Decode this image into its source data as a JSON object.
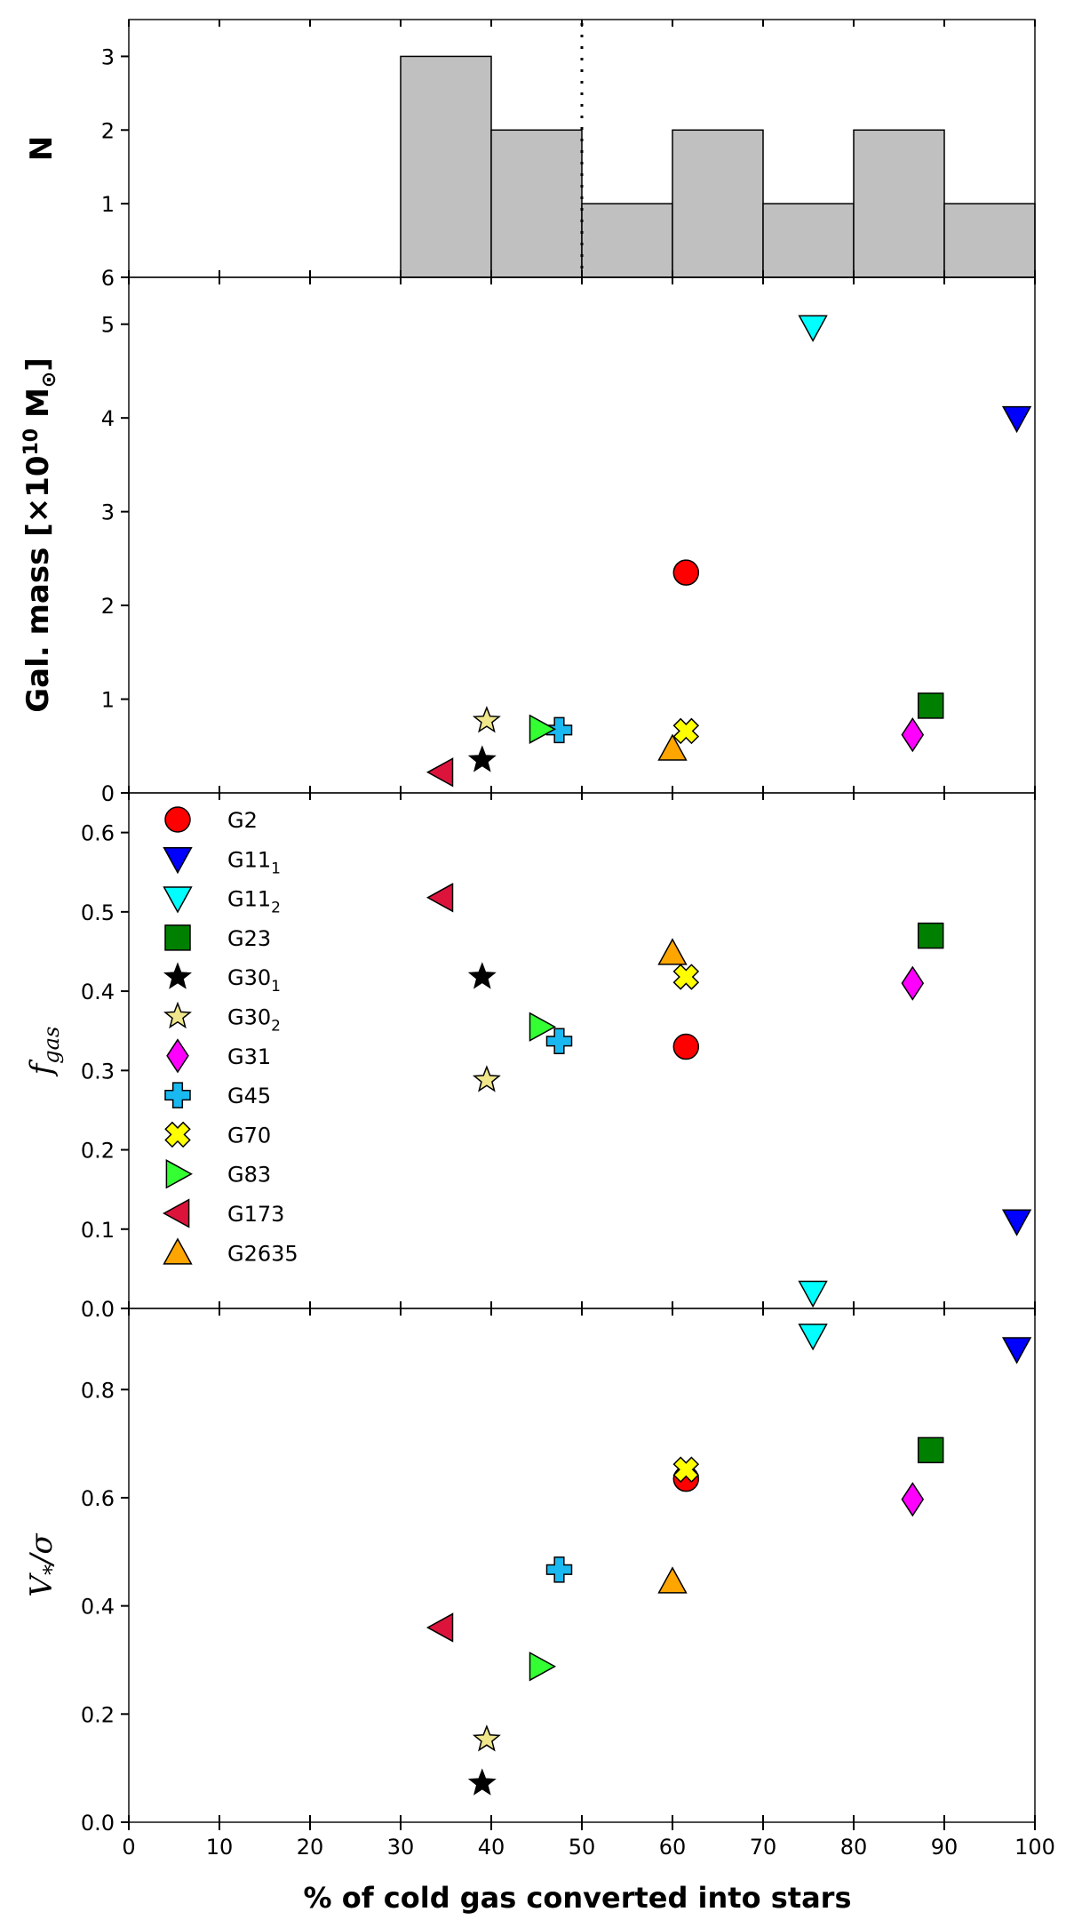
{
  "chart_data": {
    "type": "scatter",
    "xlabel": "% of cold gas converted into stars",
    "xlim": [
      0,
      100
    ],
    "xticks": [
      0,
      10,
      20,
      30,
      40,
      50,
      60,
      70,
      80,
      90,
      100
    ],
    "panels": [
      {
        "id": "histogram",
        "type": "bar",
        "ylabel": "N",
        "ylim": [
          0,
          3.5
        ],
        "yticks": [
          1,
          2,
          3
        ],
        "bottom_tick_label": "6",
        "bins": [
          30,
          40,
          50,
          60,
          70,
          80,
          90,
          100
        ],
        "counts": [
          3,
          2,
          1,
          2,
          1,
          2,
          1
        ],
        "vertical_line_x": 50
      },
      {
        "id": "mass",
        "ylabel_main": "Gal. mass [×10",
        "ylabel_sup": "10",
        "ylabel_end": " M",
        "ylabel_sub": "⊙",
        "ylabel_close": "]",
        "ylim": [
          0,
          5.5
        ],
        "yticks": [
          0,
          1,
          2,
          3,
          4,
          5
        ],
        "points": {
          "G2": [
            61.5,
            2.35
          ],
          "G11_1": [
            98,
            4.0
          ],
          "G11_2": [
            75.5,
            4.97
          ],
          "G23": [
            88.5,
            0.93
          ],
          "G30_1": [
            39,
            0.35
          ],
          "G30_2": [
            39.5,
            0.77
          ],
          "G31": [
            86.5,
            0.62
          ],
          "G45": [
            47.5,
            0.67
          ],
          "G70": [
            61.5,
            0.66
          ],
          "G83": [
            45.5,
            0.68
          ],
          "G173": [
            34.5,
            0.22
          ],
          "G2635": [
            60,
            0.47
          ]
        }
      },
      {
        "id": "fgas",
        "ylabel_base": "f",
        "ylabel_sub": "gas",
        "ylim": [
          0,
          0.65
        ],
        "yticks": [
          0.0,
          0.1,
          0.2,
          0.3,
          0.4,
          0.5,
          0.6
        ],
        "points": {
          "G2": [
            61.5,
            0.33
          ],
          "G11_1": [
            98,
            0.11
          ],
          "G11_2": [
            75.5,
            0.02
          ],
          "G23": [
            88.5,
            0.47
          ],
          "G30_1": [
            39,
            0.418
          ],
          "G30_2": [
            39.5,
            0.288
          ],
          "G31": [
            86.5,
            0.41
          ],
          "G45": [
            47.5,
            0.337
          ],
          "G70": [
            61.5,
            0.418
          ],
          "G83": [
            45.5,
            0.355
          ],
          "G173": [
            34.5,
            0.518
          ],
          "G2635": [
            60,
            0.448
          ]
        }
      },
      {
        "id": "vsigma",
        "ylabel_base": "V",
        "ylabel_sub": "*",
        "ylabel_end": "/σ",
        "ylim": [
          0,
          0.95
        ],
        "yticks": [
          0.0,
          0.2,
          0.4,
          0.6,
          0.8
        ],
        "points": {
          "G2": [
            61.5,
            0.635
          ],
          "G11_1": [
            98,
            0.875
          ],
          "G11_2": [
            75.5,
            0.9
          ],
          "G23": [
            88.5,
            0.688
          ],
          "G30_1": [
            39,
            0.072
          ],
          "G30_2": [
            39.5,
            0.153
          ],
          "G31": [
            86.5,
            0.597
          ],
          "G45": [
            47.5,
            0.467
          ],
          "G70": [
            61.5,
            0.652
          ],
          "G83": [
            45.5,
            0.288
          ],
          "G173": [
            34.5,
            0.36
          ],
          "G2635": [
            60,
            0.445
          ]
        }
      }
    ],
    "series": [
      {
        "key": "G2",
        "label": "G2",
        "sub": "",
        "marker": "circle",
        "color": "#ff0000"
      },
      {
        "key": "G11_1",
        "label": "G11",
        "sub": "1",
        "marker": "tri-down",
        "color": "#0000ff"
      },
      {
        "key": "G11_2",
        "label": "G11",
        "sub": "2",
        "marker": "tri-down",
        "color": "#00ffff"
      },
      {
        "key": "G23",
        "label": "G23",
        "sub": "",
        "marker": "square",
        "color": "#008000"
      },
      {
        "key": "G30_1",
        "label": "G30",
        "sub": "1",
        "marker": "star",
        "color": "#000000"
      },
      {
        "key": "G30_2",
        "label": "G30",
        "sub": "2",
        "marker": "star",
        "color": "#f0e68c"
      },
      {
        "key": "G31",
        "label": "G31",
        "sub": "",
        "marker": "diamond",
        "color": "#ff00ff"
      },
      {
        "key": "G45",
        "label": "G45",
        "sub": "",
        "marker": "plus",
        "color": "#1ab8f0"
      },
      {
        "key": "G70",
        "label": "G70",
        "sub": "",
        "marker": "xcross",
        "color": "#ffff00"
      },
      {
        "key": "G83",
        "label": "G83",
        "sub": "",
        "marker": "tri-right",
        "color": "#33ff33"
      },
      {
        "key": "G173",
        "label": "G173",
        "sub": "",
        "marker": "tri-left",
        "color": "#dc143c"
      },
      {
        "key": "G2635",
        "label": "G2635",
        "sub": "",
        "marker": "tri-up",
        "color": "#ffa500"
      }
    ],
    "legend_location": "upper-left of fgas panel"
  }
}
